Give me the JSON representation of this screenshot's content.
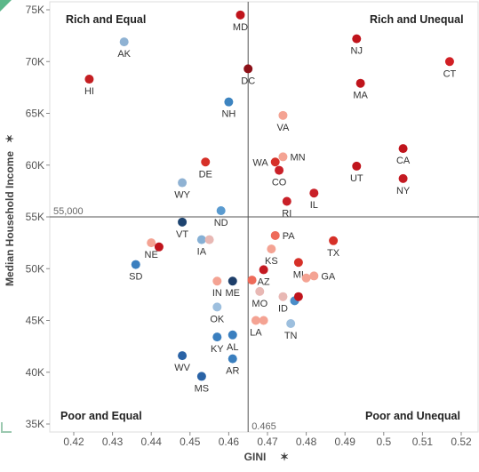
{
  "chart_data": {
    "type": "scatter",
    "xlabel": "GINI",
    "ylabel": "Median Household Income",
    "xlim": [
      0.415,
      0.52
    ],
    "ylim": [
      35000,
      75500
    ],
    "x_ticks": [
      0.42,
      0.43,
      0.44,
      0.45,
      0.46,
      0.47,
      0.48,
      0.49,
      0.5,
      0.51,
      0.52
    ],
    "x_tick_labels": [
      "0.42",
      "0.43",
      "0.44",
      "0.45",
      "0.46",
      "0.47",
      "0.48",
      "0.49",
      "0.5",
      "0.51",
      "0.52"
    ],
    "y_ticks": [
      35000,
      40000,
      45000,
      50000,
      55000,
      60000,
      65000,
      70000,
      75000
    ],
    "y_tick_labels": [
      "35K",
      "40K",
      "45K",
      "50K",
      "55K",
      "60K",
      "65K",
      "70K",
      "75K"
    ],
    "ref_x": 0.465,
    "ref_x_label": "0.465",
    "ref_y": 55000,
    "ref_y_label": "55,000",
    "grid": false,
    "quadrants": {
      "top_left": "Rich and Equal",
      "top_right": "Rich and Unequal",
      "bottom_left": "Poor and Equal",
      "bottom_right": "Poor and Unequal"
    },
    "points": [
      {
        "label": "MD",
        "x": 0.463,
        "y": 74500,
        "color": "#c0141c",
        "label_pos": "below"
      },
      {
        "label": "NJ",
        "x": 0.493,
        "y": 72200,
        "color": "#c0141c",
        "label_pos": "below"
      },
      {
        "label": "AK",
        "x": 0.433,
        "y": 71900,
        "color": "#8fb2d3",
        "label_pos": "below"
      },
      {
        "label": "CT",
        "x": 0.517,
        "y": 70000,
        "color": "#d11f24",
        "label_pos": "below"
      },
      {
        "label": "DC",
        "x": 0.465,
        "y": 69300,
        "color": "#8c1018",
        "label_pos": "below"
      },
      {
        "label": "HI",
        "x": 0.424,
        "y": 68300,
        "color": "#c41e22",
        "label_pos": "below"
      },
      {
        "label": "MA",
        "x": 0.494,
        "y": 67900,
        "color": "#c0141c",
        "label_pos": "below"
      },
      {
        "label": "NH",
        "x": 0.46,
        "y": 66100,
        "color": "#3d84c0",
        "label_pos": "below"
      },
      {
        "label": "VA",
        "x": 0.474,
        "y": 64800,
        "color": "#f4a393",
        "label_pos": "below"
      },
      {
        "label": "CA",
        "x": 0.505,
        "y": 61600,
        "color": "#c0141c",
        "label_pos": "below"
      },
      {
        "label": "MN",
        "x": 0.474,
        "y": 60800,
        "color": "#f4a393",
        "label_pos": "right"
      },
      {
        "label": "WA",
        "x": 0.472,
        "y": 60300,
        "color": "#d63028",
        "label_pos": "left"
      },
      {
        "label": "DE",
        "x": 0.454,
        "y": 60300,
        "color": "#d63028",
        "label_pos": "below"
      },
      {
        "label": "UT",
        "x": 0.493,
        "y": 59900,
        "color": "#c0141c",
        "label_pos": "below"
      },
      {
        "label": "CO",
        "x": 0.473,
        "y": 59500,
        "color": "#c92028",
        "label_pos": "below"
      },
      {
        "label": "NY",
        "x": 0.505,
        "y": 58700,
        "color": "#c41a22",
        "label_pos": "below"
      },
      {
        "label": "WY",
        "x": 0.448,
        "y": 58300,
        "color": "#8fb2d3",
        "label_pos": "below"
      },
      {
        "label": "IL",
        "x": 0.482,
        "y": 57300,
        "color": "#c92028",
        "label_pos": "below"
      },
      {
        "label": "RI",
        "x": 0.475,
        "y": 56500,
        "color": "#c92028",
        "label_pos": "below"
      },
      {
        "label": "ND",
        "x": 0.458,
        "y": 55600,
        "color": "#5a9bd0",
        "label_pos": "below"
      },
      {
        "label": "VT",
        "x": 0.448,
        "y": 54500,
        "color": "#1e4470",
        "label_pos": "below"
      },
      {
        "label": "PA",
        "x": 0.472,
        "y": 53200,
        "color": "#ee6b5a",
        "label_pos": "right"
      },
      {
        "label": "TX",
        "x": 0.487,
        "y": 52700,
        "color": "#d63028",
        "label_pos": "below"
      },
      {
        "label": "IA",
        "x": 0.453,
        "y": 52800,
        "color": "#86b0d5",
        "label_pos": "below"
      },
      {
        "label": "",
        "x": 0.455,
        "y": 52800,
        "color": "#e8b8b4",
        "label_pos": "none"
      },
      {
        "label": "NE",
        "x": 0.44,
        "y": 52500,
        "color": "#f4a393",
        "label_pos": "below"
      },
      {
        "label": "",
        "x": 0.442,
        "y": 52100,
        "color": "#c0141c",
        "label_pos": "none"
      },
      {
        "label": "KS",
        "x": 0.471,
        "y": 51900,
        "color": "#f4a393",
        "label_pos": "below"
      },
      {
        "label": "SD",
        "x": 0.436,
        "y": 50400,
        "color": "#3a7fbf",
        "label_pos": "below"
      },
      {
        "label": "MI",
        "x": 0.478,
        "y": 50600,
        "color": "#d63028",
        "label_pos": "below"
      },
      {
        "label": "AZ",
        "x": 0.469,
        "y": 49900,
        "color": "#c41a22",
        "label_pos": "below"
      },
      {
        "label": "GA",
        "x": 0.482,
        "y": 49300,
        "color": "#f4a393",
        "label_pos": "right"
      },
      {
        "label": "",
        "x": 0.48,
        "y": 49100,
        "color": "#f4a393",
        "label_pos": "none"
      },
      {
        "label": "",
        "x": 0.466,
        "y": 48900,
        "color": "#ee6b5a",
        "label_pos": "none"
      },
      {
        "label": "IN",
        "x": 0.457,
        "y": 48800,
        "color": "#f4a393",
        "label_pos": "below"
      },
      {
        "label": "ME",
        "x": 0.461,
        "y": 48800,
        "color": "#1e3f6a",
        "label_pos": "below"
      },
      {
        "label": "MO",
        "x": 0.468,
        "y": 47800,
        "color": "#e8b8b4",
        "label_pos": "below"
      },
      {
        "label": "ID",
        "x": 0.474,
        "y": 47300,
        "color": "#e8b8b4",
        "label_pos": "below"
      },
      {
        "label": "",
        "x": 0.477,
        "y": 46900,
        "color": "#4a8dc8",
        "label_pos": "none"
      },
      {
        "label": "",
        "x": 0.478,
        "y": 47300,
        "color": "#c0141c",
        "label_pos": "none"
      },
      {
        "label": "OK",
        "x": 0.457,
        "y": 46300,
        "color": "#9dbfde",
        "label_pos": "below"
      },
      {
        "label": "LA",
        "x": 0.467,
        "y": 45000,
        "color": "#f4a393",
        "label_pos": "below"
      },
      {
        "label": "",
        "x": 0.469,
        "y": 45000,
        "color": "#f4a393",
        "label_pos": "none"
      },
      {
        "label": "TN",
        "x": 0.476,
        "y": 44700,
        "color": "#9dbfde",
        "label_pos": "below"
      },
      {
        "label": "KY",
        "x": 0.457,
        "y": 43400,
        "color": "#3a7fbf",
        "label_pos": "below"
      },
      {
        "label": "AL",
        "x": 0.461,
        "y": 43600,
        "color": "#3a7fbf",
        "label_pos": "below"
      },
      {
        "label": "WV",
        "x": 0.448,
        "y": 41600,
        "color": "#2a63a6",
        "label_pos": "below"
      },
      {
        "label": "AR",
        "x": 0.461,
        "y": 41300,
        "color": "#3a7fbf",
        "label_pos": "below"
      },
      {
        "label": "MS",
        "x": 0.453,
        "y": 39600,
        "color": "#2a63a6",
        "label_pos": "below"
      }
    ]
  }
}
